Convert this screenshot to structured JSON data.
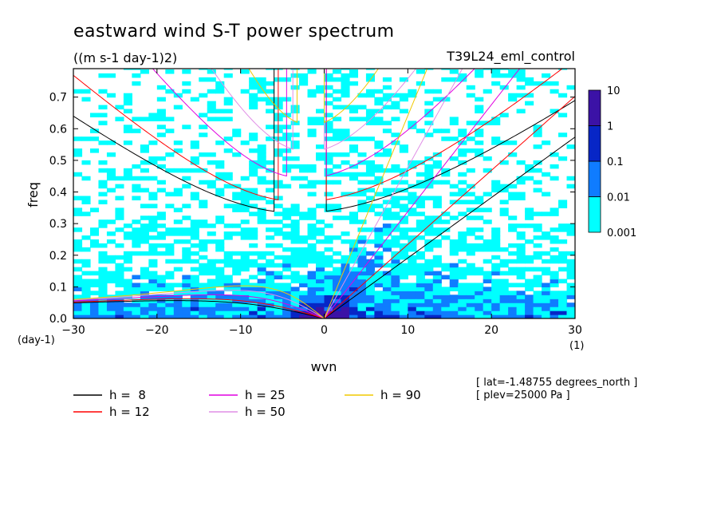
{
  "title": "eastward wind S-T power spectrum",
  "units": "((m s-1 day-1)2)",
  "run_label": "T39L24_eml_control",
  "chart_data": {
    "type": "heatmap",
    "xlabel": "wvn",
    "ylabel": "freq",
    "x_unit_label": "(1)",
    "y_unit_label": "(day-1)",
    "xlim": [
      -30,
      30
    ],
    "ylim": [
      0,
      0.79
    ],
    "xticks": [
      "-30",
      "-20",
      "-10",
      "0",
      "10",
      "20",
      "30"
    ],
    "yticks": [
      "0.0",
      "0.1",
      "0.2",
      "0.3",
      "0.4",
      "0.5",
      "0.6",
      "0.7"
    ],
    "colorbar": {
      "labels": [
        "10",
        "1",
        "0.1",
        "0.01",
        "0.001"
      ],
      "levels": [
        0.001,
        0.01,
        0.1,
        1,
        10
      ],
      "colors": [
        "#00ffff",
        "#0f7cff",
        "#0726c6",
        "#3b12a6"
      ]
    },
    "series": [
      {
        "name": "h =  8",
        "h": 8,
        "color": "#000000"
      },
      {
        "name": "h = 12",
        "h": 12,
        "color": "#ff0000"
      },
      {
        "name": "h = 25",
        "h": 25,
        "color": "#e000e0"
      },
      {
        "name": "h = 50",
        "h": 50,
        "color": "#e08ee6"
      },
      {
        "name": "h = 90",
        "h": 90,
        "color": "#f0c800"
      }
    ],
    "annotations": [
      "[ lat=-1.48755 degrees_north ]",
      "[ plev=25000 Pa ]"
    ]
  }
}
